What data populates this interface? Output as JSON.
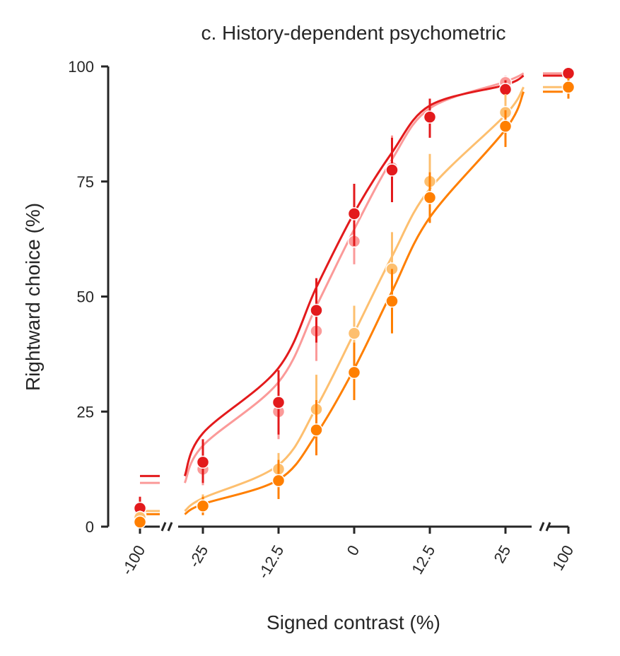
{
  "chart_data": {
    "type": "scatter",
    "title": "c. History-dependent psychometric",
    "xlabel": "Signed contrast (%)",
    "ylabel": "Rightward choice (%)",
    "ylim": [
      0,
      100
    ],
    "yticks": [
      0,
      25,
      50,
      75,
      100
    ],
    "xtick_labels": [
      "-100",
      "-25",
      "-12.5",
      "0",
      "12.5",
      "25",
      "100"
    ],
    "x": [
      "-100",
      "-25",
      "-12.5",
      "-6.25",
      "0",
      "6.25",
      "12.5",
      "25",
      "100"
    ],
    "grid": false,
    "series": [
      {
        "color": "#fb9a99",
        "values": [
          2.5,
          12.5,
          25,
          42.5,
          62,
          78,
          89,
          96.5,
          98.5
        ],
        "err_low": [
          1.5,
          9,
          19,
          36,
          57,
          72,
          85,
          95,
          97.5
        ],
        "err_high": [
          4,
          17,
          31,
          49,
          68,
          85,
          93,
          98,
          99
        ],
        "fit": [
          9.5,
          17.6,
          31.4,
          47.9,
          64.6,
          79.8,
          90.9,
          96.7,
          98.5
        ]
      },
      {
        "color": "#e31a1c",
        "values": [
          4,
          14,
          27,
          47,
          68,
          77.5,
          89,
          95,
          98.5
        ],
        "err_low": [
          2,
          9.5,
          20,
          40,
          61,
          70.5,
          84.5,
          92.5,
          97.5
        ],
        "err_high": [
          6.5,
          19,
          34,
          54,
          74.5,
          84.5,
          93,
          97,
          99.5
        ],
        "fit": [
          11,
          20.3,
          34.5,
          52,
          68.2,
          81.3,
          91.5,
          96,
          98
        ]
      },
      {
        "color": "#fdbf6f",
        "values": [
          2,
          4.5,
          12.5,
          25.5,
          42,
          56,
          75,
          90,
          95.5
        ],
        "err_low": [
          1,
          2.5,
          8.5,
          19,
          36,
          48.5,
          69,
          86,
          94
        ],
        "err_high": [
          3.5,
          7,
          16,
          33,
          48,
          64,
          81,
          94,
          97
        ],
        "fit": [
          3.4,
          6.2,
          13.4,
          25.9,
          42.1,
          58.7,
          73.4,
          89.5,
          95.5
        ]
      },
      {
        "color": "#ff7f00",
        "values": [
          1,
          4.5,
          10,
          21,
          33.5,
          49,
          71.5,
          87,
          95.5
        ],
        "err_low": [
          0.5,
          2.5,
          6,
          15.5,
          27.5,
          42,
          66,
          82.5,
          93
        ],
        "err_high": [
          2,
          6.5,
          14.5,
          27.5,
          40,
          56,
          77,
          90.5,
          97.5
        ],
        "fit": [
          2.7,
          4.9,
          10.2,
          20.1,
          34.3,
          51.1,
          67.2,
          86.3,
          94.5
        ]
      }
    ]
  }
}
